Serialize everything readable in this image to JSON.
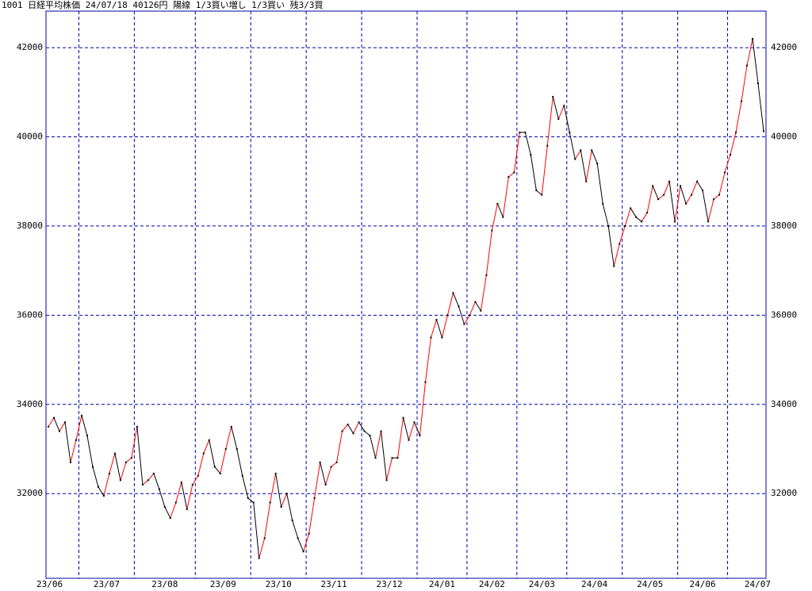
{
  "chart_data": {
    "type": "line",
    "title": "1001 日経平均株価 24/07/18 40126円 陽線 1/3買い増し 1/3買い 残3/3買",
    "categories": [
      "23/06",
      null,
      null,
      null,
      null,
      null,
      "23/07",
      null,
      null,
      null,
      null,
      null,
      null,
      null,
      null,
      null,
      "23/08",
      null,
      null,
      null,
      null,
      null,
      null,
      null,
      null,
      null,
      null,
      "23/09",
      null,
      null,
      null,
      null,
      null,
      null,
      null,
      null,
      null,
      "23/10",
      null,
      null,
      null,
      null,
      null,
      null,
      null,
      null,
      null,
      "23/11",
      null,
      null,
      null,
      null,
      null,
      null,
      null,
      null,
      null,
      "23/12",
      null,
      null,
      null,
      null,
      null,
      null,
      null,
      null,
      null,
      "24/01",
      null,
      null,
      null,
      null,
      null,
      null,
      null,
      null,
      "24/02",
      null,
      null,
      null,
      null,
      null,
      null,
      null,
      null,
      "24/03",
      null,
      null,
      null,
      null,
      null,
      null,
      null,
      null,
      "24/04",
      null,
      null,
      null,
      null,
      null,
      null,
      null,
      null,
      null,
      "24/05",
      null,
      null,
      null,
      null,
      null,
      null,
      null,
      null,
      null,
      "24/06",
      null,
      null,
      null,
      null,
      null,
      null,
      null,
      null,
      "24/07",
      null,
      null,
      null,
      null,
      null,
      null
    ],
    "series": [
      {
        "color": "#000000",
        "up_color": "#ff0000",
        "values": [
          33500,
          33700,
          33400,
          33600,
          32700,
          33200,
          33750,
          33300,
          32600,
          32150,
          31950,
          32450,
          32900,
          32300,
          32700,
          32800,
          33500,
          32200,
          32300,
          32450,
          32100,
          31700,
          31450,
          31800,
          32250,
          31650,
          32200,
          32400,
          32900,
          33200,
          32600,
          32450,
          33000,
          33500,
          33000,
          32400,
          31900,
          31800,
          30550,
          31000,
          31800,
          32450,
          31700,
          32000,
          31400,
          31000,
          30700,
          31100,
          31900,
          32700,
          32200,
          32600,
          32700,
          33400,
          33550,
          33350,
          33600,
          33400,
          33300,
          32800,
          33400,
          32300,
          32800,
          32800,
          33700,
          33200,
          33600,
          33300,
          34500,
          35500,
          35900,
          35500,
          36000,
          36500,
          36200,
          35800,
          36000,
          36300,
          36100,
          36900,
          37900,
          38500,
          38200,
          39100,
          39200,
          40100,
          40100,
          39600,
          38800,
          38700,
          39800,
          40900,
          40400,
          40700,
          40100,
          39500,
          39700,
          39000,
          39700,
          39400,
          38500,
          38000,
          37100,
          37600,
          38000,
          38400,
          38200,
          38100,
          38300,
          38900,
          38600,
          38700,
          39000,
          38100,
          38900,
          38500,
          38700,
          39000,
          38800,
          38100,
          38600,
          38700,
          39200,
          39600,
          40100,
          40800,
          41600,
          42200,
          41200,
          40126
        ]
      }
    ],
    "ylim": [
      30100,
      42820
    ],
    "yticks": [
      32000,
      34000,
      36000,
      38000,
      40000,
      42000
    ],
    "grid": true
  }
}
